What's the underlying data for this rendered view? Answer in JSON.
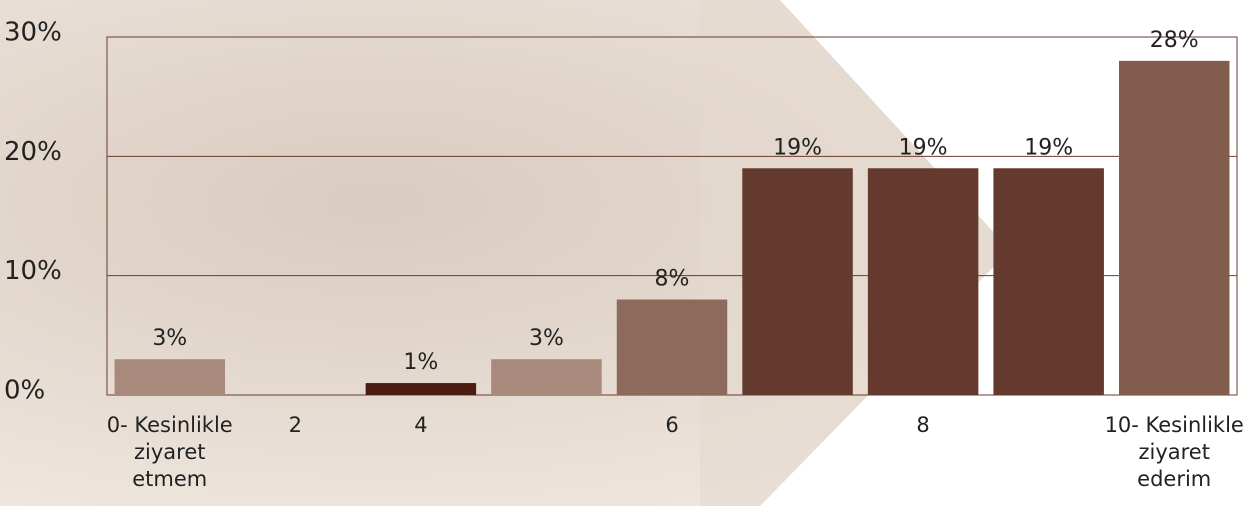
{
  "chart_data": {
    "type": "bar",
    "categories": [
      "0- Kesinlikle ziyaret etmem",
      "2",
      "4",
      null,
      "6",
      null,
      "8",
      null,
      "10- Kesinlikle ziyaret ederim"
    ],
    "values": [
      3,
      null,
      1,
      3,
      8,
      19,
      19,
      19,
      28
    ],
    "value_labels": [
      "3%",
      null,
      "1%",
      "3%",
      "8%",
      "19%",
      "19%",
      "19%",
      "28%"
    ],
    "colors": [
      "#a88a7c",
      "#a88a7c",
      "#4a1c12",
      "#a88a7c",
      "#8c6a5c",
      "#653a2e",
      "#653a2e",
      "#653a2e",
      "#825c4d"
    ],
    "ylim": [
      0,
      30
    ],
    "yticks": [
      {
        "value": 0,
        "label": "0%"
      },
      {
        "value": 10,
        "label": "10%"
      },
      {
        "value": 20,
        "label": "20%"
      },
      {
        "value": 30,
        "label": "30%"
      }
    ],
    "grid": true
  }
}
